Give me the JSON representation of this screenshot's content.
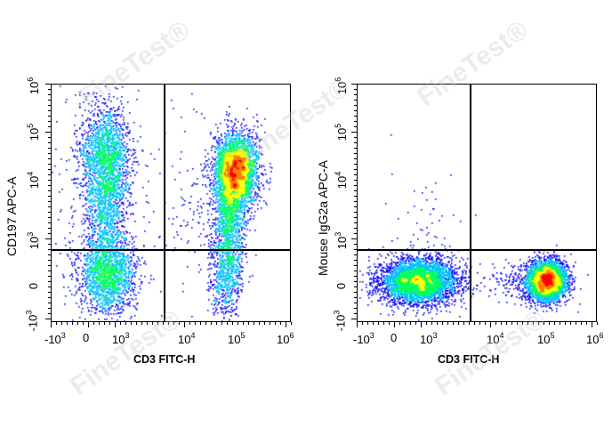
{
  "watermark": "FineTest®",
  "chart_data": [
    {
      "type": "scatter",
      "subtype": "flow-cytometry-pseudocolor-density",
      "title": "",
      "xlabel": "CD3 FITC-H",
      "ylabel": "CD197 APC-A",
      "x_scale": "biexponential",
      "y_scale": "biexponential",
      "x_ticks": [
        "-10^3",
        "0",
        "10^3",
        "10^4",
        "10^5",
        "10^6"
      ],
      "y_ticks": [
        "-10^3",
        "0",
        "10^3",
        "10^4",
        "10^5",
        "10^6"
      ],
      "xlim": [
        -1000,
        1000000
      ],
      "ylim": [
        -1000,
        1000000
      ],
      "gates": {
        "vertical_x": 3500,
        "horizontal_y": 700
      },
      "populations": [
        {
          "name": "CD3- CD197+ (upper-left)",
          "center_x": 400,
          "center_y": 25000,
          "density": "medium"
        },
        {
          "name": "CD3- CD197- (lower-left)",
          "center_x": 400,
          "center_y": 50,
          "density": "medium"
        },
        {
          "name": "CD3+ CD197+ (upper-right)",
          "center_x": 70000,
          "center_y": 15000,
          "density": "high"
        },
        {
          "name": "CD3+ CD197- (lower-right)",
          "center_x": 60000,
          "center_y": 50,
          "density": "low"
        }
      ],
      "color_scale": [
        "#0000ff",
        "#00c0ff",
        "#00ff60",
        "#ffff00",
        "#ff8000",
        "#ff0000"
      ]
    },
    {
      "type": "scatter",
      "subtype": "flow-cytometry-pseudocolor-density",
      "title": "",
      "xlabel": "CD3 FITC-H",
      "ylabel": "Mouse IgG2a APC-A",
      "x_scale": "biexponential",
      "y_scale": "biexponential",
      "x_ticks": [
        "-10^3",
        "0",
        "10^3",
        "10^4",
        "10^5",
        "10^6"
      ],
      "y_ticks": [
        "-10^3",
        "0",
        "10^3",
        "10^4",
        "10^5",
        "10^6"
      ],
      "xlim": [
        -1000,
        1000000
      ],
      "ylim": [
        -1000,
        1000000
      ],
      "gates": {
        "vertical_x": 4500,
        "horizontal_y": 700
      },
      "populations": [
        {
          "name": "CD3- isotype- (lower-left)",
          "center_x": 300,
          "center_y": 0,
          "density": "medium"
        },
        {
          "name": "CD3+ isotype- (lower-right)",
          "center_x": 60000,
          "center_y": 0,
          "density": "high"
        },
        {
          "name": "sparse upper-left events",
          "center_x": 500,
          "center_y": 8000,
          "density": "very low"
        }
      ],
      "color_scale": [
        "#0000ff",
        "#00c0ff",
        "#00ff60",
        "#ffff00",
        "#ff8000",
        "#ff0000"
      ]
    }
  ],
  "panels": [
    {
      "ylabel": "CD197 APC-A",
      "xlabel": "CD3 FITC-H",
      "yticks": [
        {
          "base": "10",
          "exp": "6",
          "neg": false
        },
        {
          "base": "10",
          "exp": "5",
          "neg": false
        },
        {
          "base": "10",
          "exp": "4",
          "neg": false
        },
        {
          "base": "10",
          "exp": "3",
          "neg": false
        },
        {
          "base": "0",
          "exp": "",
          "neg": false
        },
        {
          "base": "-10",
          "exp": "3",
          "neg": true
        }
      ],
      "xticks": [
        {
          "base": "-10",
          "exp": "3"
        },
        {
          "base": "0",
          "exp": ""
        },
        {
          "base": "10",
          "exp": "3"
        },
        {
          "base": "10",
          "exp": "4"
        },
        {
          "base": "10",
          "exp": "5"
        },
        {
          "base": "10",
          "exp": "6"
        }
      ]
    },
    {
      "ylabel": "Mouse IgG2a APC-A",
      "xlabel": "CD3 FITC-H",
      "yticks": [
        {
          "base": "10",
          "exp": "6",
          "neg": false
        },
        {
          "base": "10",
          "exp": "5",
          "neg": false
        },
        {
          "base": "10",
          "exp": "4",
          "neg": false
        },
        {
          "base": "10",
          "exp": "3",
          "neg": false
        },
        {
          "base": "0",
          "exp": "",
          "neg": false
        },
        {
          "base": "-10",
          "exp": "3",
          "neg": true
        }
      ],
      "xticks": [
        {
          "base": "-10",
          "exp": "3"
        },
        {
          "base": "0",
          "exp": ""
        },
        {
          "base": "10",
          "exp": "3"
        },
        {
          "base": "10",
          "exp": "4"
        },
        {
          "base": "10",
          "exp": "5"
        },
        {
          "base": "10",
          "exp": "6"
        }
      ]
    }
  ]
}
